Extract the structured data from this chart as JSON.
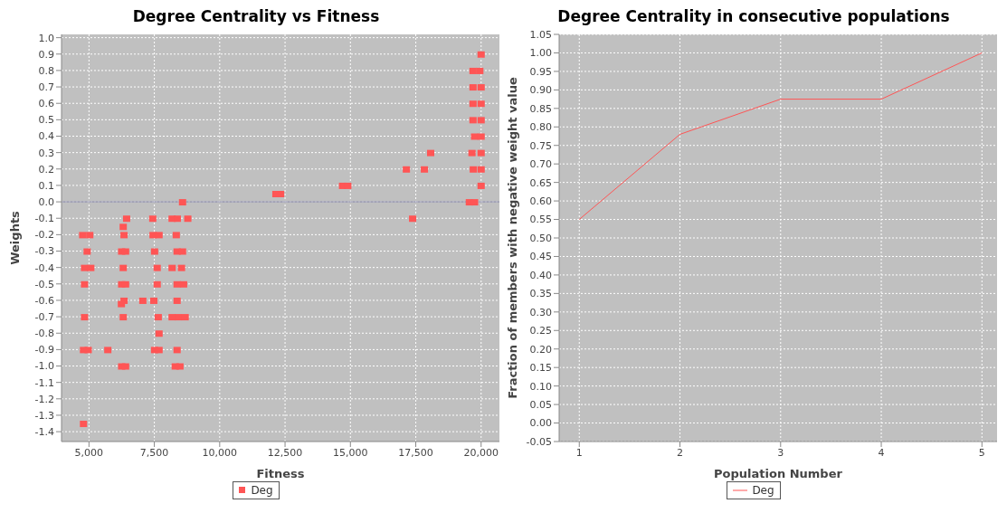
{
  "chart_data": [
    {
      "type": "scatter",
      "title": "Degree Centrality vs Fitness",
      "xlabel": "Fitness",
      "ylabel": "Weights",
      "marker": "square",
      "grid": true,
      "legend": "bottom",
      "xlim": [
        3950,
        20700
      ],
      "xticks": [
        {
          "value": 5000,
          "label": "5,000"
        },
        {
          "value": 7500,
          "label": "7,500"
        },
        {
          "value": 10000,
          "label": "10,000"
        },
        {
          "value": 12500,
          "label": "12,500"
        },
        {
          "value": 15000,
          "label": "15,000"
        },
        {
          "value": 17500,
          "label": "17,500"
        },
        {
          "value": 20000,
          "label": "20,000"
        }
      ],
      "ylim": [
        -1.46,
        1.02
      ],
      "yticks": [
        {
          "value": 1,
          "label": "1.0"
        },
        0.9,
        0.8,
        0.7,
        0.6,
        0.5,
        0.4,
        0.3,
        0.2,
        0.1,
        {
          "value": 0,
          "label": "0.0"
        },
        -0.1,
        -0.2,
        -0.3,
        -0.4,
        -0.5,
        -0.6,
        -0.7,
        -0.8,
        -0.9,
        {
          "value": -1,
          "label": "-1.0"
        },
        -1.1,
        -1.2,
        -1.3,
        -1.4
      ],
      "ref_lines": [
        {
          "axis": "y",
          "value": 0,
          "color": "#8888aa"
        }
      ],
      "series": [
        {
          "name": "Deg",
          "color": "#ff5555",
          "x": [
            4760,
            5030,
            4930,
            4830,
            5070,
            4830,
            4830,
            4790,
            4970,
            4790,
            5720,
            6440,
            6310,
            6340,
            6250,
            6400,
            6310,
            6250,
            6400,
            6340,
            6240,
            6310,
            6250,
            6400,
            7060,
            7440,
            7450,
            7680,
            7510,
            7610,
            7610,
            7480,
            7650,
            7680,
            7510,
            7680,
            8580,
            8180,
            8380,
            8780,
            8340,
            8370,
            8580,
            8180,
            8540,
            8370,
            8620,
            8370,
            8180,
            8420,
            8680,
            8370,
            8300,
            8480,
            12150,
            12330,
            14700,
            14900,
            17140,
            17830,
            18070,
            17380,
            19550,
            19750,
            20000,
            19700,
            20000,
            19650,
            20000,
            19750,
            20000,
            19690,
            20000,
            19690,
            20000,
            19690,
            20000,
            19690,
            19950,
            20000
          ],
          "values": [
            -0.2,
            -0.2,
            -0.3,
            -0.4,
            -0.4,
            -0.5,
            -0.7,
            -0.9,
            -0.9,
            -1.35,
            -0.9,
            -0.1,
            -0.15,
            -0.2,
            -0.3,
            -0.3,
            -0.4,
            -0.5,
            -0.5,
            -0.6,
            -0.62,
            -0.7,
            -1.0,
            -1.0,
            -0.6,
            -0.1,
            -0.2,
            -0.2,
            -0.3,
            -0.4,
            -0.5,
            -0.6,
            -0.7,
            -0.8,
            -0.9,
            -0.9,
            0.0,
            -0.1,
            -0.1,
            -0.1,
            -0.2,
            -0.3,
            -0.3,
            -0.4,
            -0.4,
            -0.5,
            -0.5,
            -0.6,
            -0.7,
            -0.7,
            -0.7,
            -0.9,
            -1.0,
            -1.0,
            0.05,
            0.05,
            0.1,
            0.1,
            0.2,
            0.2,
            0.3,
            -0.1,
            0.0,
            0.0,
            0.1,
            0.2,
            0.2,
            0.3,
            0.3,
            0.4,
            0.4,
            0.5,
            0.5,
            0.6,
            0.6,
            0.7,
            0.7,
            0.8,
            0.8,
            0.9
          ]
        }
      ]
    },
    {
      "type": "line",
      "title": "Degree Centrality in consecutive populations",
      "xlabel": "Population Number",
      "ylabel": "Fraction of members with negative weight value",
      "grid": true,
      "legend": "bottom",
      "marker": "none",
      "line_style": "solid",
      "xlim": [
        0.8,
        5.15
      ],
      "xticks": [
        1,
        2,
        3,
        4,
        5
      ],
      "ylim": [
        -0.05,
        1.05
      ],
      "yticks": [
        {
          "value": -0.05,
          "label": "-0.05"
        },
        {
          "value": 0,
          "label": "0.00"
        },
        {
          "value": 0.05,
          "label": "0.05"
        },
        {
          "value": 0.1,
          "label": "0.10"
        },
        {
          "value": 0.15,
          "label": "0.15"
        },
        {
          "value": 0.2,
          "label": "0.20"
        },
        {
          "value": 0.25,
          "label": "0.25"
        },
        {
          "value": 0.3,
          "label": "0.30"
        },
        {
          "value": 0.35,
          "label": "0.35"
        },
        {
          "value": 0.4,
          "label": "0.40"
        },
        {
          "value": 0.45,
          "label": "0.45"
        },
        {
          "value": 0.5,
          "label": "0.50"
        },
        {
          "value": 0.55,
          "label": "0.55"
        },
        {
          "value": 0.6,
          "label": "0.60"
        },
        {
          "value": 0.65,
          "label": "0.65"
        },
        {
          "value": 0.7,
          "label": "0.70"
        },
        {
          "value": 0.75,
          "label": "0.75"
        },
        {
          "value": 0.8,
          "label": "0.80"
        },
        {
          "value": 0.85,
          "label": "0.85"
        },
        {
          "value": 0.9,
          "label": "0.90"
        },
        {
          "value": 0.95,
          "label": "0.95"
        },
        {
          "value": 1,
          "label": "1.00"
        },
        {
          "value": 1.05,
          "label": "1.05"
        }
      ],
      "series": [
        {
          "name": "Deg",
          "color": "#ff5555",
          "x": [
            1,
            2,
            3,
            4,
            5
          ],
          "values": [
            0.55,
            0.78,
            0.875,
            0.875,
            1.0
          ]
        }
      ]
    }
  ]
}
